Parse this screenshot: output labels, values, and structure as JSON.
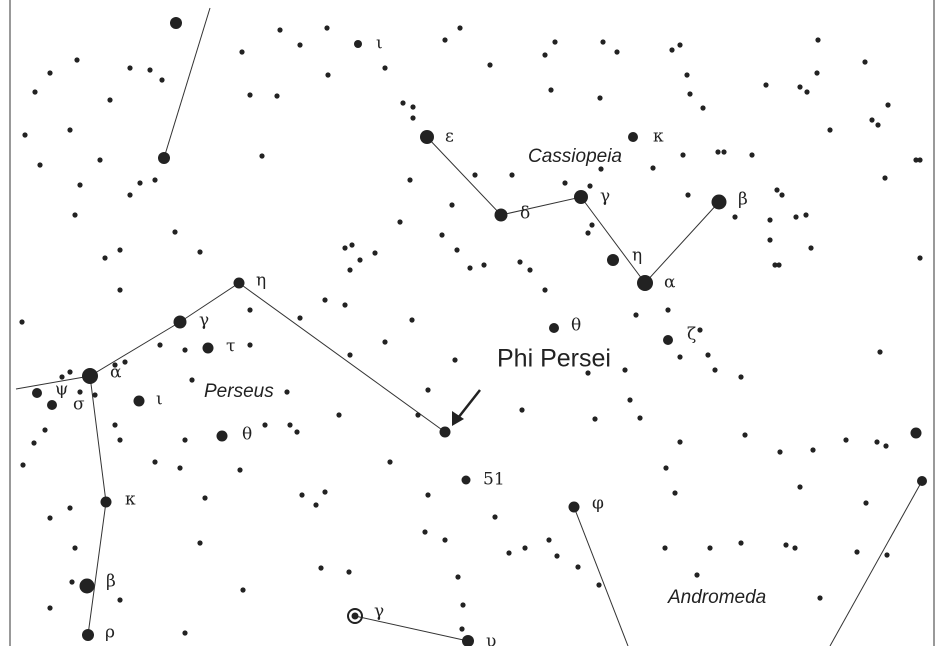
{
  "constellations": [
    "Cassiopeia",
    "Perseus",
    "Andromeda"
  ],
  "annotation": "Phi Persei",
  "star_labels": [
    "ι",
    "ε",
    "κ",
    "γ",
    "δ",
    "β",
    "η",
    "α",
    "η",
    "γ",
    "τ",
    "θ",
    "ζ",
    "α",
    "ψ",
    "σ",
    "ι",
    "θ",
    "51",
    "κ",
    "φ",
    "β",
    "γ",
    "ρ",
    "υ"
  ]
}
